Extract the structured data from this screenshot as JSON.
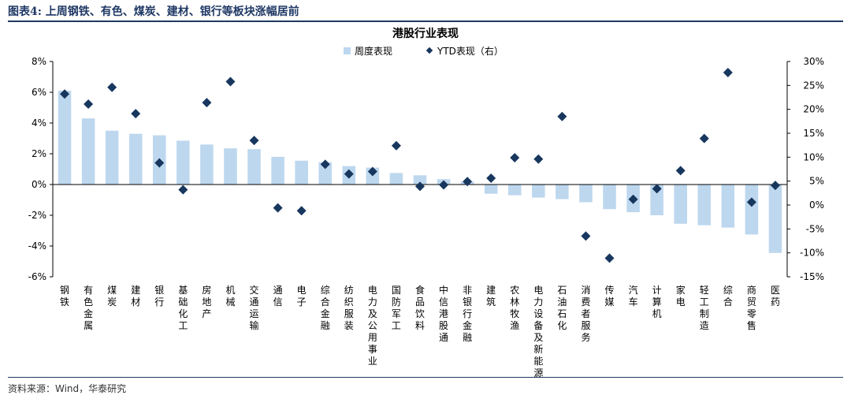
{
  "figure": {
    "caption": "图表4:  上周钢铁、有色、煤炭、建材、银行等板块涨幅居前",
    "source": "资料来源：Wind，华泰研究"
  },
  "colors": {
    "bar": "#bdd7ee",
    "marker": "#17375e",
    "rule": "#1f3864",
    "axis": "#000000"
  },
  "chart_data": {
    "type": "bar",
    "title": "港股行业表现",
    "legend": {
      "bar_label": "周度表现",
      "marker_label": "YTD表现（右）",
      "placement": "top-center"
    },
    "ylim": [
      -6,
      8
    ],
    "y_ticks": [
      8,
      6,
      4,
      2,
      0,
      -2,
      -4,
      -6
    ],
    "y_tick_labels": [
      "8%",
      "6%",
      "4%",
      "2%",
      "0%",
      "-2%",
      "-4%",
      "-6%"
    ],
    "y2lim": [
      -15,
      30
    ],
    "y2_ticks": [
      30,
      25,
      20,
      15,
      10,
      5,
      0,
      -5,
      -10,
      -15
    ],
    "y2_tick_labels": [
      "30%",
      "25%",
      "20%",
      "15%",
      "10%",
      "5%",
      "0%",
      "-5%",
      "-10%",
      "-15%"
    ],
    "categories": [
      "钢铁",
      "有色金属",
      "煤炭",
      "建材",
      "银行",
      "基础化工",
      "房地产",
      "机械",
      "交通运输",
      "通信",
      "电子",
      "综合金融",
      "纺织服装",
      "电力及公用事业",
      "国防军工",
      "食品饮料",
      "中信港股通",
      "非银行金融",
      "建筑",
      "农林牧渔",
      "电力设备及新能源",
      "石油石化",
      "消费者服务",
      "传媒",
      "汽车",
      "计算机",
      "家电",
      "轻工制造",
      "综合",
      "商贸零售",
      "医药"
    ],
    "series": [
      {
        "name": "周度表现",
        "kind": "bar",
        "axis": "left",
        "values": [
          6.1,
          4.3,
          3.5,
          3.3,
          3.2,
          2.85,
          2.6,
          2.35,
          2.3,
          1.8,
          1.55,
          1.45,
          1.2,
          1.1,
          0.75,
          0.6,
          0.35,
          0.2,
          -0.6,
          -0.7,
          -0.85,
          -0.95,
          -1.15,
          -1.6,
          -1.8,
          -2.0,
          -2.55,
          -2.65,
          -2.8,
          -3.25,
          -4.45
        ]
      },
      {
        "name": "YTD表现（右）",
        "kind": "marker",
        "axis": "right",
        "values": [
          23.2,
          21.1,
          24.6,
          19.1,
          8.8,
          3.2,
          21.4,
          25.8,
          13.5,
          -0.6,
          -1.2,
          8.5,
          6.5,
          7.0,
          12.4,
          3.9,
          4.2,
          4.9,
          5.6,
          9.9,
          9.6,
          18.5,
          -6.5,
          -11.1,
          1.2,
          3.4,
          7.2,
          13.9,
          27.7,
          0.6,
          4.1
        ]
      }
    ]
  }
}
